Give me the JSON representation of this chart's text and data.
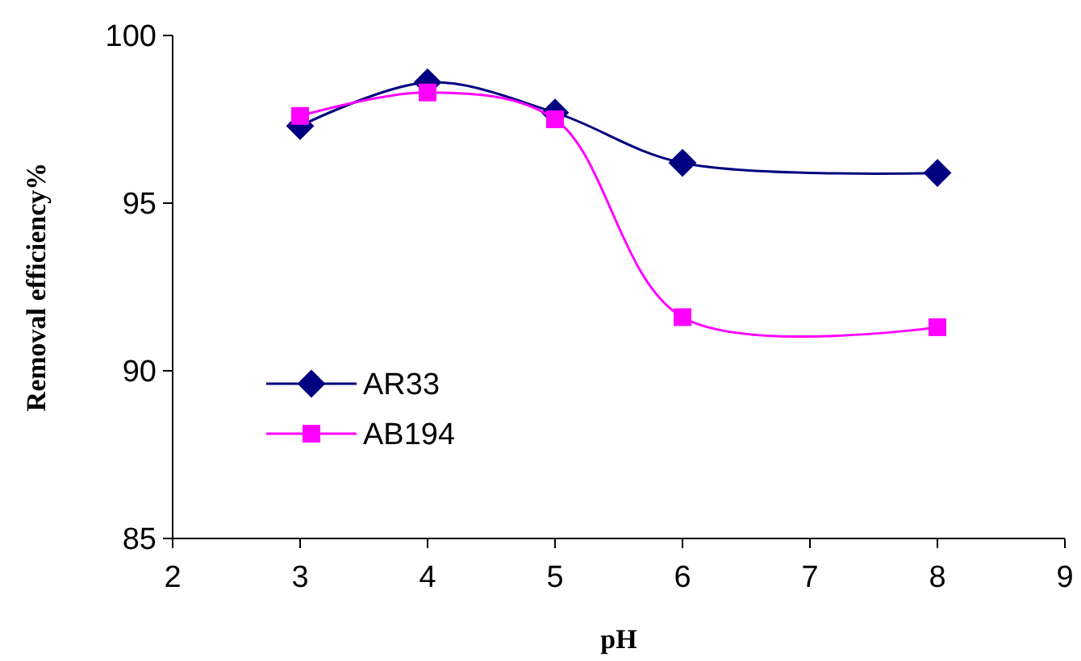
{
  "chart_data": {
    "type": "line",
    "xlabel": "pH",
    "ylabel": "Removal efficiency%",
    "x": [
      3,
      4,
      5,
      6,
      8
    ],
    "series": [
      {
        "name": "AR33",
        "color": "#000080",
        "marker": "diamond",
        "values": [
          97.3,
          98.6,
          97.7,
          96.2,
          95.9
        ]
      },
      {
        "name": "AB194",
        "color": "#ff00ff",
        "marker": "square",
        "values": [
          97.6,
          98.3,
          97.5,
          91.6,
          91.3
        ]
      }
    ],
    "xlim": [
      2,
      9
    ],
    "xticks": [
      2,
      3,
      4,
      5,
      6,
      7,
      8,
      9
    ],
    "ylim": [
      85,
      100
    ],
    "yticks": [
      85,
      90,
      95,
      100
    ],
    "grid": false,
    "legend": "left",
    "line_style": "solid"
  }
}
